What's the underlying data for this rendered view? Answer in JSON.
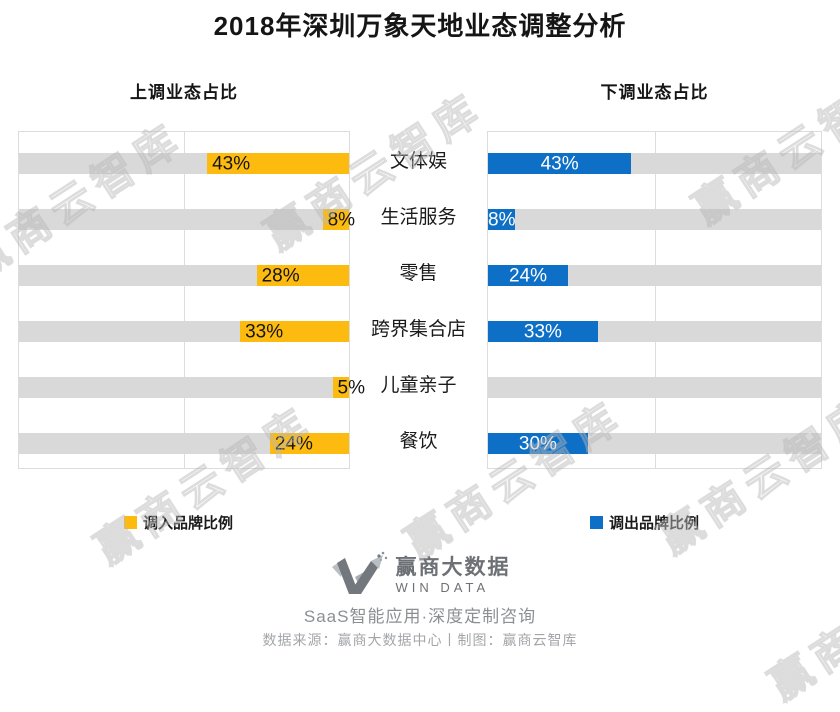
{
  "title": "2018年深圳万象天地业态调整分析",
  "headers": {
    "left": "上调业态占比",
    "right": "下调业态占比"
  },
  "chart_data": {
    "type": "bar",
    "variant": "tornado",
    "categories": [
      "文体娱",
      "生活服务",
      "零售",
      "跨界集合店",
      "儿童亲子",
      "餐饮"
    ],
    "series": [
      {
        "name": "调入品牌比例",
        "side": "left",
        "color": "#FDBB10",
        "values": [
          43,
          8,
          28,
          33,
          5,
          24
        ],
        "labels": [
          "43%",
          "8%",
          "28%",
          "33%",
          "5%",
          "24%"
        ]
      },
      {
        "name": "调出品牌比例",
        "side": "right",
        "color": "#0D6FC5",
        "values": [
          43,
          8,
          24,
          33,
          0,
          30
        ],
        "labels": [
          "43%",
          "8%",
          "24%",
          "33%",
          "",
          "30%"
        ]
      }
    ],
    "xlim": [
      0,
      100
    ],
    "gridline_at": 50,
    "track_color": "#D9D9D9",
    "legend_position": "bottom"
  },
  "legend": [
    {
      "label": "调入品牌比例",
      "color": "#FDBB10"
    },
    {
      "label": "调出品牌比例",
      "color": "#0D6FC5"
    }
  ],
  "branding": {
    "logo_cn": "赢商大数据",
    "logo_en": "WIN DATA",
    "tagline": "SaaS智能应用·深度定制咨询"
  },
  "source_line": "数据来源：赢商大数据中心丨制图：赢商云智库",
  "watermark": "赢商云智库"
}
